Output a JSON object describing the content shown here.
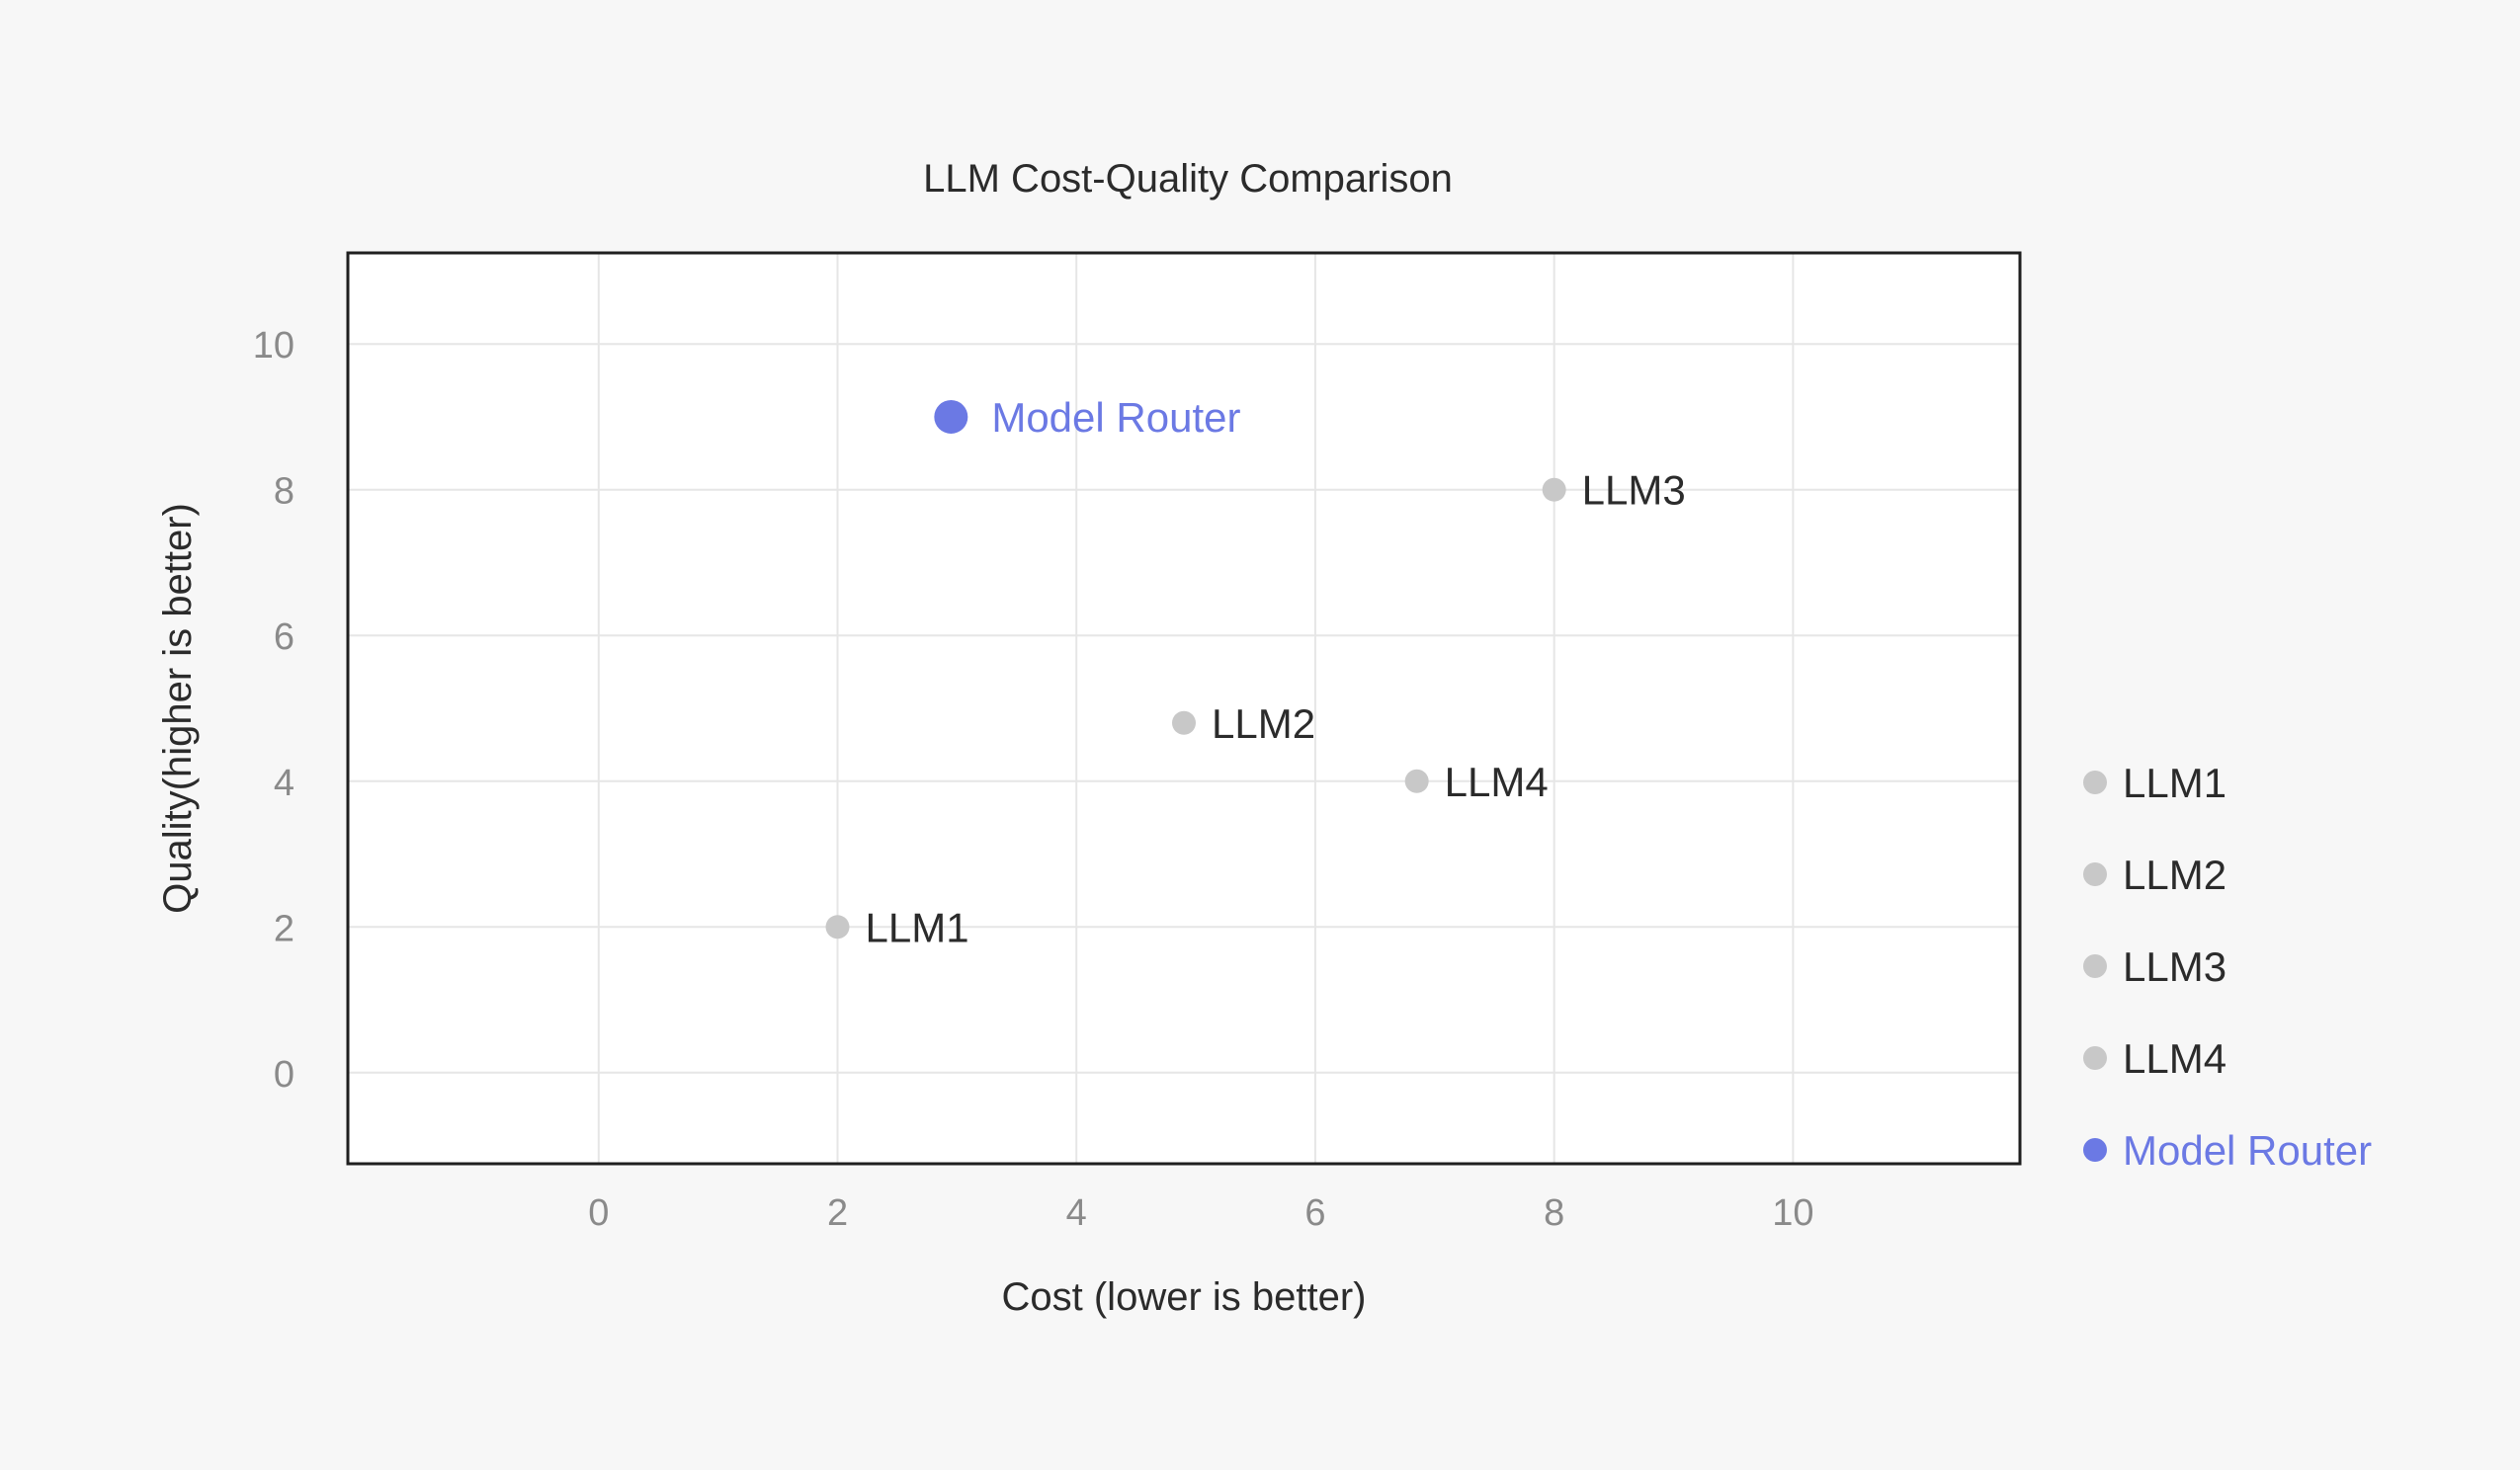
{
  "chart_data": {
    "type": "scatter",
    "title": "LLM Cost-Quality Comparison",
    "xlabel": "Cost (lower is better)",
    "ylabel": "Quality(higher is better)",
    "xlim": [
      -2.1,
      11.9
    ],
    "ylim": [
      -1.25,
      11.25
    ],
    "xticks": [
      0,
      2,
      4,
      6,
      8,
      10
    ],
    "yticks": [
      0,
      2,
      4,
      6,
      8,
      10
    ],
    "grid": true,
    "legend": "right",
    "series": [
      {
        "name": "LLM1",
        "x": 2,
        "y": 2,
        "color": "#c8c8c8",
        "text_color": "#2b2b2b",
        "highlight": false
      },
      {
        "name": "LLM2",
        "x": 4.9,
        "y": 4.8,
        "color": "#c8c8c8",
        "text_color": "#2b2b2b",
        "highlight": false
      },
      {
        "name": "LLM3",
        "x": 8,
        "y": 8,
        "color": "#c8c8c8",
        "text_color": "#2b2b2b",
        "highlight": false
      },
      {
        "name": "LLM4",
        "x": 6.85,
        "y": 4,
        "color": "#c8c8c8",
        "text_color": "#2b2b2b",
        "highlight": false
      },
      {
        "name": "Model Router",
        "x": 2.95,
        "y": 9,
        "color": "#6b79e4",
        "text_color": "#6b79e4",
        "highlight": true
      }
    ],
    "colors": {
      "background": "#f7f7f7",
      "plot_background": "#ffffff",
      "frame": "#1f1f1f",
      "grid": "#e6e6e6",
      "tick_text": "#8a8a8a"
    }
  }
}
